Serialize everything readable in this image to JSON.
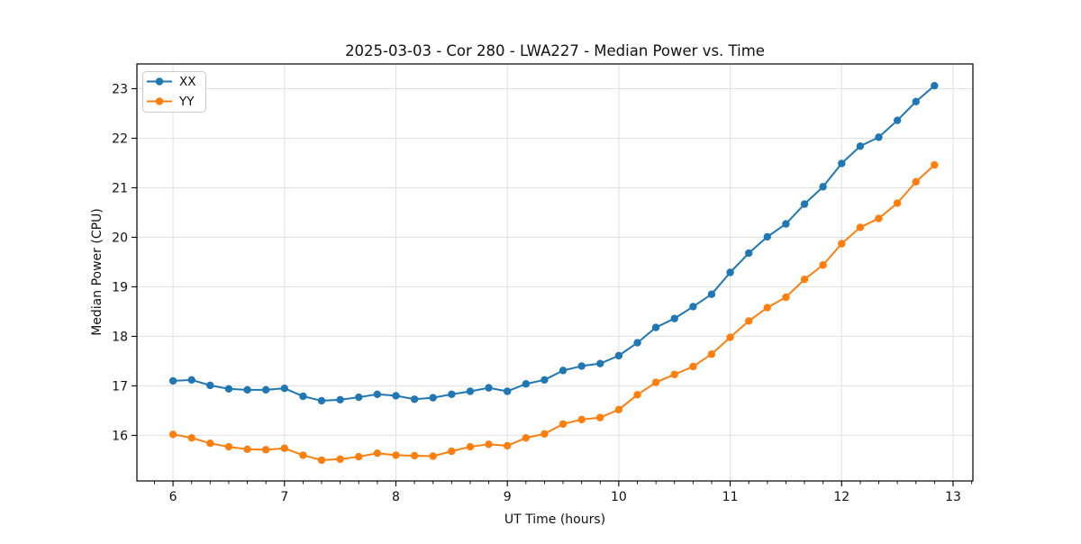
{
  "window": {
    "background": "#ffffff"
  },
  "colors": {
    "grid": "#e0e0e0",
    "axis": "#000000",
    "text": "#111111",
    "legend_border": "#cccccc",
    "series_xx": "#1f77b4",
    "series_yy": "#ff7f0e"
  },
  "chart_data": {
    "type": "line",
    "title": "2025-03-03 - Cor 280 - LWA227 - Median Power vs. Time",
    "xlabel": "UT Time (hours)",
    "ylabel": "Median Power (CPU)",
    "xlim": [
      5.676,
      13.178
    ],
    "ylim": [
      15.08,
      23.5
    ],
    "xticks": [
      6,
      7,
      8,
      9,
      10,
      11,
      12,
      13
    ],
    "yticks": [
      16,
      17,
      18,
      19,
      20,
      21,
      22,
      23
    ],
    "x_minor_interval_hours": 0.16667,
    "grid": true,
    "legend_position": "upper-left",
    "marker": "circle",
    "x": [
      6.0,
      6.167,
      6.333,
      6.5,
      6.667,
      6.833,
      7.0,
      7.167,
      7.333,
      7.5,
      7.667,
      7.833,
      8.0,
      8.167,
      8.333,
      8.5,
      8.667,
      8.833,
      9.0,
      9.167,
      9.333,
      9.5,
      9.667,
      9.833,
      10.0,
      10.167,
      10.333,
      10.5,
      10.667,
      10.833,
      11.0,
      11.167,
      11.333,
      11.5,
      11.667,
      11.833,
      12.0,
      12.167,
      12.333,
      12.5,
      12.667,
      12.833
    ],
    "series": [
      {
        "name": "XX",
        "color": "#1f77b4",
        "values": [
          17.1,
          17.12,
          17.01,
          16.94,
          16.92,
          16.92,
          16.95,
          16.79,
          16.7,
          16.72,
          16.77,
          16.83,
          16.8,
          16.73,
          16.76,
          16.83,
          16.89,
          16.96,
          16.89,
          17.04,
          17.12,
          17.31,
          17.4,
          17.45,
          17.61,
          17.87,
          18.18,
          18.36,
          18.6,
          18.85,
          19.29,
          19.68,
          20.01,
          20.27,
          20.67,
          21.02,
          21.49,
          21.84,
          22.02,
          22.36,
          22.74,
          23.06
        ]
      },
      {
        "name": "YY",
        "color": "#ff7f0e",
        "values": [
          16.02,
          15.95,
          15.84,
          15.77,
          15.72,
          15.71,
          15.74,
          15.6,
          15.5,
          15.52,
          15.57,
          15.64,
          15.6,
          15.59,
          15.58,
          15.68,
          15.77,
          15.82,
          15.79,
          15.95,
          16.03,
          16.23,
          16.32,
          16.36,
          16.52,
          16.82,
          17.07,
          17.23,
          17.39,
          17.64,
          17.98,
          18.31,
          18.58,
          18.79,
          19.15,
          19.44,
          19.87,
          20.2,
          20.38,
          20.69,
          21.12,
          21.46
        ]
      }
    ]
  }
}
